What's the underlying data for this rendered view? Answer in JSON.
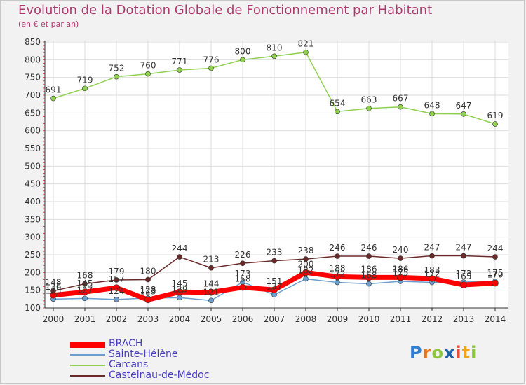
{
  "header": {
    "title": "Evolution de la Dotation Globale de Fonctionnement par Habitant",
    "subtitle": "(en € et par an)"
  },
  "logo": {
    "text": "Proxiti",
    "letters": [
      "P",
      "r",
      "o",
      "x",
      "i",
      "t",
      "i"
    ]
  },
  "colors": {
    "title": "#b03a6e",
    "BRACH": "#ff0000",
    "Sainte-Hélène": "#6a9fcf",
    "Carcans": "#8fd14f",
    "Castelnau-de-Médoc": "#6b2a2a",
    "grid": "#dddddd",
    "axis": "#333333"
  },
  "chart_data": {
    "type": "line",
    "title": "Evolution de la Dotation Globale de Fonctionnement par Habitant",
    "subtitle": "(en € et par an)",
    "xlabel": "",
    "ylabel": "",
    "ylim": [
      100,
      850
    ],
    "yticks": [
      100,
      150,
      200,
      250,
      300,
      350,
      400,
      450,
      500,
      550,
      600,
      650,
      700,
      750,
      800,
      850
    ],
    "grid": true,
    "legend_position": "bottom-left",
    "x": [
      "2000",
      "2001",
      "2002",
      "2003",
      "2004",
      "2005",
      "2006",
      "2007",
      "2008",
      "2009",
      "2010",
      "2011",
      "2012",
      "2013",
      "2014"
    ],
    "series": [
      {
        "name": "Carcans",
        "values": [
          691,
          719,
          752,
          760,
          771,
          776,
          800,
          810,
          821,
          654,
          663,
          667,
          648,
          647,
          619
        ],
        "labels": [
          "691",
          "719",
          "752",
          "760",
          "771",
          "776",
          "800",
          "810",
          "821",
          "654",
          "663",
          "667",
          "648",
          "647",
          "619"
        ]
      },
      {
        "name": "Castelnau-de-Médoc",
        "values": [
          148,
          168,
          179,
          180,
          244,
          213,
          226,
          233,
          238,
          246,
          246,
          240,
          247,
          247,
          244
        ],
        "labels": [
          "148",
          "168",
          "179",
          "180",
          "244",
          "213",
          "226",
          "233",
          "238",
          "246",
          "246",
          "240",
          "247",
          "247",
          "244"
        ]
      },
      {
        "name": "Sainte-Hélène",
        "values": [
          125,
          127,
          124,
          128,
          129,
          121,
          173,
          137,
          182,
          172,
          168,
          175,
          172,
          173,
          175
        ],
        "labels": [
          "125",
          "127",
          "124",
          "128",
          "129",
          "121",
          "173",
          "137",
          "182",
          "172",
          "168",
          "175",
          "172",
          "173",
          "175"
        ]
      },
      {
        "name": "BRACH",
        "values": [
          136,
          145,
          157,
          123,
          145,
          144,
          158,
          151,
          200,
          188,
          186,
          186,
          183,
          165,
          170
        ],
        "labels": [
          "136",
          "145",
          "157",
          "123",
          "145",
          "144",
          "158",
          "151",
          "200",
          "188",
          "186",
          "186",
          "183",
          "165",
          "170"
        ]
      }
    ],
    "legend": [
      "BRACH",
      "Sainte-Hélène",
      "Carcans",
      "Castelnau-de-Médoc"
    ]
  }
}
